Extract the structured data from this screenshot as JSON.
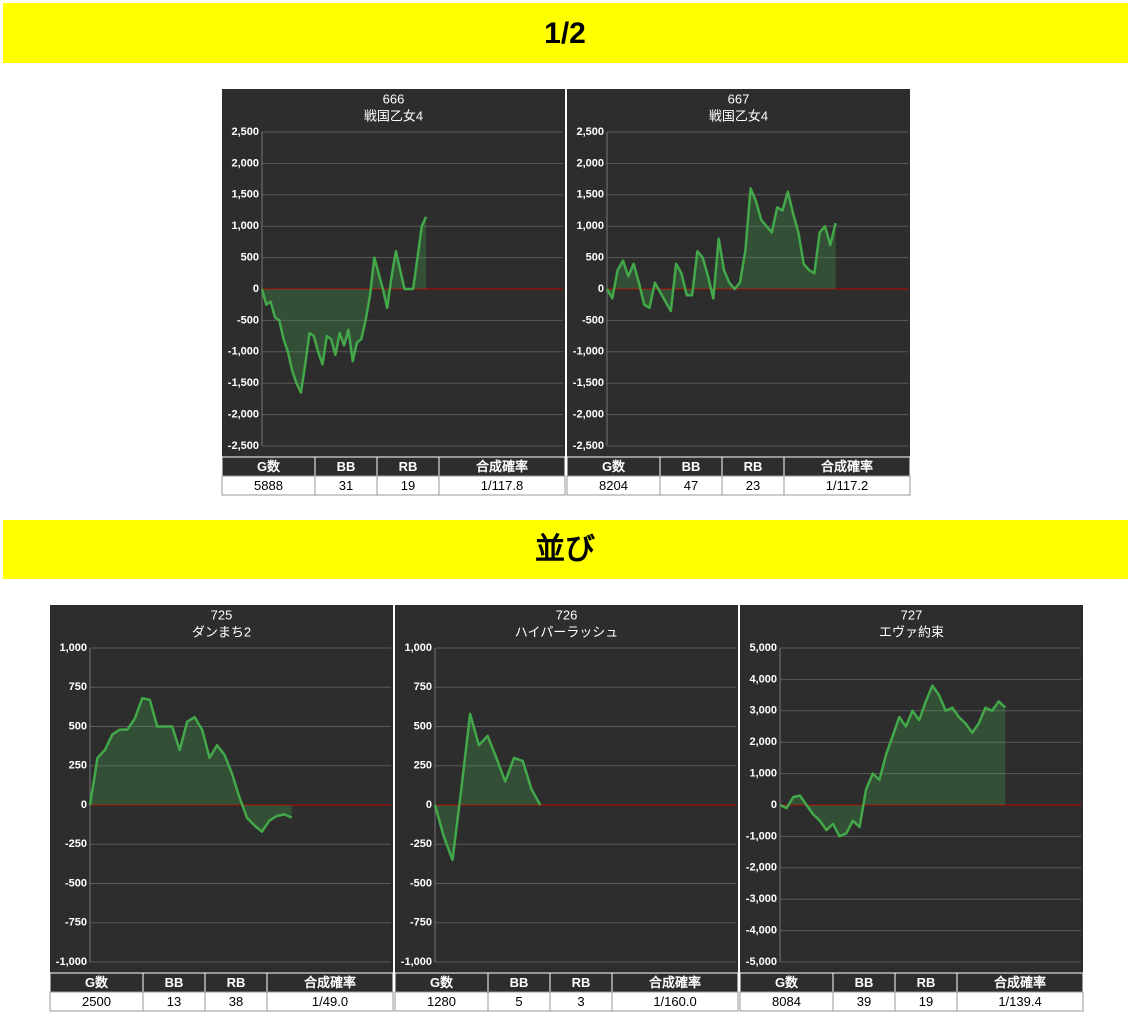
{
  "headings": [
    "1/2",
    "並び"
  ],
  "table_columns": [
    "G数",
    "BB",
    "RB",
    "合成確率"
  ],
  "chart_data": [
    {
      "type": "line",
      "title": "666",
      "subtitle": "戦国乙女4",
      "color": "#43a84a",
      "grid": true,
      "zero_line_color": "#c00000",
      "xlim": [
        0,
        10800
      ],
      "ylim": [
        -2500,
        2500
      ],
      "yticks": [
        {
          "value": 2500,
          "label": "2,500"
        },
        {
          "value": 2000,
          "label": "2,000"
        },
        {
          "value": 1500,
          "label": "1,500"
        },
        {
          "value": 1000,
          "label": "1,000"
        },
        500,
        0,
        -500,
        {
          "value": -1000,
          "label": "-1,000"
        },
        {
          "value": -1500,
          "label": "-1,500"
        },
        {
          "value": -2000,
          "label": "-2,000"
        },
        {
          "value": -2500,
          "label": "-2,500"
        }
      ],
      "values": [
        0,
        -250,
        -200,
        -450,
        -500,
        -800,
        -1000,
        -1300,
        -1500,
        -1650,
        -1200,
        -700,
        -750,
        -1000,
        -1200,
        -750,
        -800,
        -1050,
        -700,
        -900,
        -650,
        -1150,
        -850,
        -800,
        -500,
        -100,
        500,
        250,
        0,
        -300,
        200,
        600,
        300,
        0,
        0,
        0,
        500,
        1000,
        1150
      ],
      "table_row": [
        5888,
        31,
        19,
        "1/117.8"
      ]
    },
    {
      "type": "line",
      "title": "667",
      "subtitle": "戦国乙女4",
      "color": "#43a84a",
      "grid": true,
      "zero_line_color": "#c00000",
      "xlim": [
        0,
        10800
      ],
      "ylim": [
        -2500,
        2500
      ],
      "yticks": [
        {
          "value": 2500,
          "label": "2,500"
        },
        {
          "value": 2000,
          "label": "2,000"
        },
        {
          "value": 1500,
          "label": "1,500"
        },
        {
          "value": 1000,
          "label": "1,000"
        },
        500,
        0,
        -500,
        {
          "value": -1000,
          "label": "-1,000"
        },
        {
          "value": -1500,
          "label": "-1,500"
        },
        {
          "value": -2000,
          "label": "-2,000"
        },
        {
          "value": -2500,
          "label": "-2,500"
        }
      ],
      "values": [
        0,
        -150,
        300,
        450,
        200,
        400,
        100,
        -250,
        -300,
        100,
        -50,
        -200,
        -350,
        400,
        250,
        -100,
        -100,
        600,
        500,
        200,
        -150,
        800,
        300,
        100,
        0,
        100,
        600,
        1600,
        1400,
        1100,
        1000,
        900,
        1300,
        1250,
        1550,
        1200,
        900,
        400,
        300,
        250,
        900,
        1000,
        700,
        1050
      ],
      "table_row": [
        8204,
        47,
        23,
        "1/117.2"
      ]
    },
    {
      "type": "line",
      "title": "725",
      "subtitle": "ダンまち2",
      "color": "#43a84a",
      "grid": true,
      "zero_line_color": "#c00000",
      "xlim": [
        0,
        3730
      ],
      "ylim": [
        -1000,
        1000
      ],
      "yticks": [
        {
          "value": 1000,
          "label": "1,000"
        },
        750,
        500,
        250,
        0,
        -250,
        -500,
        -750,
        {
          "value": -1000,
          "label": "-1,000"
        }
      ],
      "values": [
        0,
        300,
        350,
        450,
        480,
        480,
        550,
        680,
        670,
        500,
        500,
        500,
        350,
        530,
        560,
        480,
        300,
        380,
        320,
        200,
        50,
        -80,
        -130,
        -170,
        -100,
        -70,
        -60,
        -80
      ],
      "table_row": [
        2500,
        13,
        38,
        "1/49.0"
      ]
    },
    {
      "type": "line",
      "title": "726",
      "subtitle": "ハイパーラッシュ",
      "color": "#43a84a",
      "grid": true,
      "zero_line_color": "#c00000",
      "xlim": [
        0,
        3660
      ],
      "ylim": [
        -1000,
        1000
      ],
      "yticks": [
        {
          "value": 1000,
          "label": "1,000"
        },
        750,
        500,
        250,
        0,
        -250,
        -500,
        -750,
        {
          "value": -1000,
          "label": "-1,000"
        }
      ],
      "values": [
        0,
        -200,
        -350,
        100,
        580,
        380,
        440,
        300,
        150,
        300,
        280,
        100,
        0
      ],
      "table_row": [
        1280,
        5,
        3,
        "1/160.0"
      ]
    },
    {
      "type": "line",
      "title": "727",
      "subtitle": "エヴァ約束",
      "color": "#43a84a",
      "grid": true,
      "zero_line_color": "#c00000",
      "xlim": [
        0,
        10800
      ],
      "ylim": [
        -5000,
        5000
      ],
      "yticks": [
        {
          "value": 5000,
          "label": "5,000"
        },
        {
          "value": 4000,
          "label": "4,000"
        },
        {
          "value": 3000,
          "label": "3,000"
        },
        {
          "value": 2000,
          "label": "2,000"
        },
        {
          "value": 1000,
          "label": "1,000"
        },
        0,
        {
          "value": -1000,
          "label": "-1,000"
        },
        {
          "value": -2000,
          "label": "-2,000"
        },
        {
          "value": -3000,
          "label": "-3,000"
        },
        {
          "value": -4000,
          "label": "-4,000"
        },
        {
          "value": -5000,
          "label": "-5,000"
        }
      ],
      "values": [
        0,
        -100,
        250,
        300,
        0,
        -300,
        -500,
        -800,
        -600,
        -1000,
        -900,
        -500,
        -700,
        500,
        1000,
        800,
        1600,
        2200,
        2800,
        2500,
        3000,
        2700,
        3300,
        3800,
        3500,
        3000,
        3100,
        2800,
        2600,
        2300,
        2600,
        3100,
        3000,
        3300,
        3100
      ],
      "table_row": [
        8084,
        39,
        19,
        "1/139.4"
      ]
    }
  ]
}
